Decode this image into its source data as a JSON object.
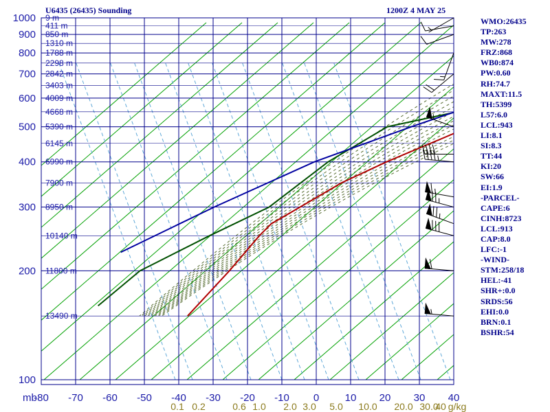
{
  "header": {
    "station_title": "U6435 (26435) Sounding",
    "time_title": "1200Z  4 MAY 25"
  },
  "indices": [
    "WMO:26435",
    "TP:263",
    "MW:278",
    "FRZ:868",
    "WB0:874",
    "PW:0.60",
    "RH:74.7",
    "MAXT:11.5",
    "TH:5399",
    "L57:6.0",
    "LCL:943",
    "LI:8.1",
    "SI:8.3",
    "TT:44",
    "KI:20",
    "SW:66",
    "EI:1.9",
    "-PARCEL-",
    "CAPE:6",
    "CINH:8723",
    "LCL:913",
    "CAP:8.0",
    "LFC:-1",
    "-WIND-",
    "STM:258/18",
    "HEL:-41",
    "SHR+:0.0",
    "SRDS:56",
    "EHI:0.0",
    "BRN:0.1",
    "BSHR:54"
  ],
  "colors": {
    "grid": "#00008b",
    "dry_adiabat": "#00a000",
    "moist_adiabat": "#556b2f",
    "mixing_ratio": "#5fa8d8",
    "temperature": "#b00000",
    "dewpoint": "#005000",
    "parcel": "#0000a0",
    "mixing_label": "#8b7a1c"
  },
  "chart_data": {
    "type": "line",
    "title": "U6435 (26435) Sounding",
    "xlabel": "",
    "ylabel": "mb",
    "pressure_ticks": [
      "100",
      "200",
      "300",
      "400",
      "500",
      "600",
      "700",
      "800",
      "900",
      "1000"
    ],
    "pressure_values": [
      100,
      200,
      300,
      400,
      500,
      600,
      700,
      800,
      900,
      1000
    ],
    "temperature_ticks": [
      "-80",
      "-70",
      "-60",
      "-50",
      "-40",
      "-30",
      "-20",
      "-10",
      "0",
      "10",
      "20",
      "30",
      "40"
    ],
    "temperature_values": [
      -80,
      -70,
      -60,
      -50,
      -40,
      -30,
      -20,
      -10,
      0,
      10,
      20,
      30,
      40
    ],
    "mixing_ratio_ticks": [
      "0.1",
      "0.2",
      "0.6",
      "1.0",
      "2.0",
      "3.0",
      "5.0",
      "10.0",
      "20.0",
      "30.0",
      "40"
    ],
    "mixing_ratio_unit": "g/kg",
    "height_labels": [
      {
        "p": 150,
        "label": "13490 m"
      },
      {
        "p": 200,
        "label": "11800 m"
      },
      {
        "p": 250,
        "label": "10140 m"
      },
      {
        "p": 300,
        "label": "8950 m"
      },
      {
        "p": 350,
        "label": "7900 m"
      },
      {
        "p": 400,
        "label": "6990 m"
      },
      {
        "p": 450,
        "label": "6145 m"
      },
      {
        "p": 500,
        "label": "5390 m"
      },
      {
        "p": 550,
        "label": "4668 m"
      },
      {
        "p": 600,
        "label": "4009 m"
      },
      {
        "p": 650,
        "label": "3403 m"
      },
      {
        "p": 700,
        "label": "2842 m"
      },
      {
        "p": 750,
        "label": "2298 m"
      },
      {
        "p": 800,
        "label": "1788 m"
      },
      {
        "p": 850,
        "label": "1310 m"
      },
      {
        "p": 900,
        "label": "850 m"
      },
      {
        "p": 950,
        "label": "411 m"
      },
      {
        "p": 1000,
        "label": "9 m"
      }
    ],
    "series": [
      {
        "name": "",
        "role": "temperature",
        "points": [
          [
            150,
            -56
          ],
          [
            200,
            -57
          ],
          [
            250,
            -58.5
          ],
          [
            270,
            -58.5
          ],
          [
            300,
            -55
          ],
          [
            350,
            -50
          ],
          [
            400,
            -43
          ],
          [
            500,
            -29
          ],
          [
            600,
            -16
          ],
          [
            700,
            -4
          ],
          [
            800,
            0
          ],
          [
            850,
            3
          ],
          [
            900,
            5
          ],
          [
            950,
            6
          ],
          [
            980,
            7
          ]
        ]
      },
      {
        "name": "",
        "role": "dewpoint",
        "points": [
          [
            160,
            -85
          ],
          [
            200,
            -83
          ],
          [
            250,
            -73
          ],
          [
            300,
            -64
          ],
          [
            400,
            -60
          ],
          [
            500,
            -53
          ],
          [
            550,
            -37
          ],
          [
            600,
            -24
          ],
          [
            650,
            -14
          ],
          [
            700,
            -7
          ],
          [
            800,
            -2
          ],
          [
            850,
            1.5
          ],
          [
            900,
            3
          ],
          [
            1000,
            2
          ]
        ]
      },
      {
        "name": "",
        "role": "parcel",
        "points": [
          [
            225,
            -94
          ],
          [
            300,
            -80
          ],
          [
            400,
            -64
          ],
          [
            500,
            -46
          ],
          [
            600,
            -30
          ],
          [
            700,
            -14
          ],
          [
            800,
            -4
          ],
          [
            900,
            2
          ],
          [
            950,
            5
          ],
          [
            990,
            7.5
          ]
        ]
      }
    ],
    "wind_barbs": [
      {
        "p": 150,
        "dir": 275,
        "speed": 55
      },
      {
        "p": 200,
        "dir": 275,
        "speed": 60
      },
      {
        "p": 250,
        "dir": 285,
        "speed": 80
      },
      {
        "p": 270,
        "dir": 290,
        "speed": 75
      },
      {
        "p": 300,
        "dir": 285,
        "speed": 75
      },
      {
        "p": 320,
        "dir": 280,
        "speed": 65
      },
      {
        "p": 400,
        "dir": 275,
        "speed": 45
      },
      {
        "p": 420,
        "dir": 270,
        "speed": 40
      },
      {
        "p": 500,
        "dir": 290,
        "speed": 55
      },
      {
        "p": 700,
        "dir": 230,
        "speed": 20
      },
      {
        "p": 800,
        "dir": 200,
        "speed": 15
      },
      {
        "p": 900,
        "dir": 250,
        "speed": 10
      },
      {
        "p": 950,
        "dir": 260,
        "speed": 10
      },
      {
        "p": 1000,
        "dir": 240,
        "speed": 5
      }
    ],
    "xlim": [
      -80,
      40
    ],
    "ylim": [
      1000,
      100
    ],
    "grid": true
  }
}
